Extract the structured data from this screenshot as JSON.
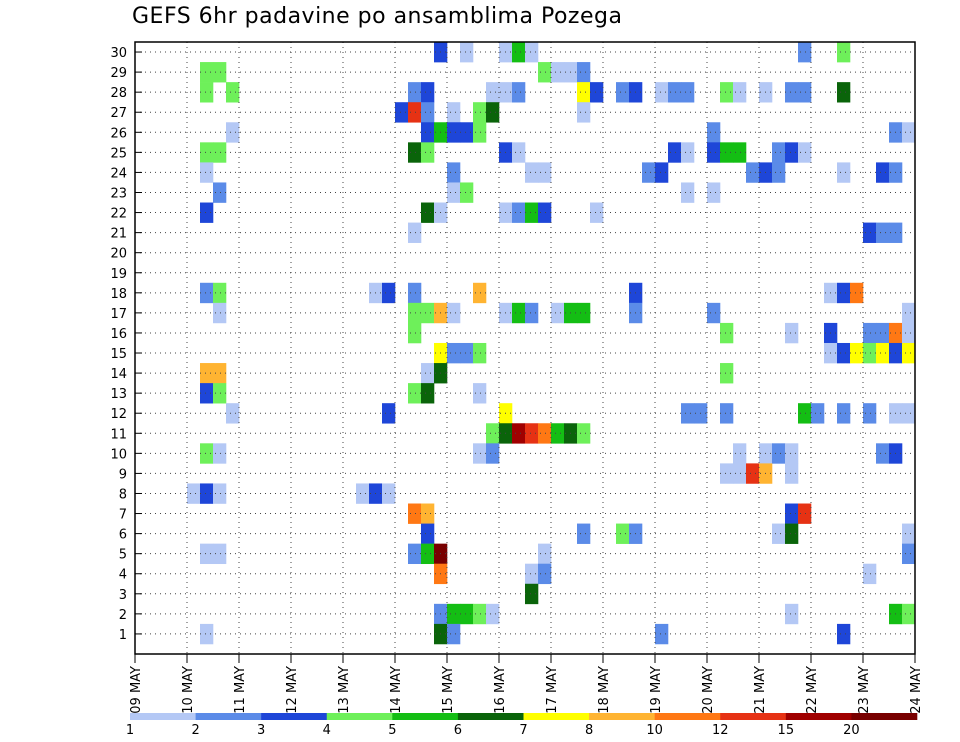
{
  "chart_data": {
    "type": "heatmap",
    "title": "GEFS 6hr padavine po ansamblima Pozega",
    "xlabel": "",
    "ylabel": "",
    "x_tick_labels": [
      "09 MAY",
      "10 MAY",
      "11 MAY",
      "12 MAY",
      "13 MAY",
      "14 MAY",
      "15 MAY",
      "16 MAY",
      "17 MAY",
      "18 MAY",
      "19 MAY",
      "20 MAY",
      "21 MAY",
      "22 MAY",
      "23 MAY",
      "24 MAY"
    ],
    "y_tick_labels": [
      "1",
      "2",
      "3",
      "4",
      "5",
      "6",
      "7",
      "8",
      "9",
      "10",
      "11",
      "12",
      "13",
      "14",
      "15",
      "16",
      "17",
      "18",
      "19",
      "20",
      "21",
      "22",
      "23",
      "24",
      "25",
      "26",
      "27",
      "28",
      "29",
      "30"
    ],
    "members_range": [
      0,
      30
    ],
    "steps_per_day": 4,
    "grid": true,
    "legend": {
      "placement": "bottom",
      "labels": [
        "1",
        "2",
        "3",
        "4",
        "5",
        "6",
        "7",
        "8",
        "10",
        "12",
        "15",
        "20"
      ],
      "colors": [
        "#b4c8f5",
        "#5b8be8",
        "#1e46d8",
        "#6ef05a",
        "#14be14",
        "#0a640a",
        "#ffff00",
        "#ffb432",
        "#ff7814",
        "#e63214",
        "#a00000",
        "#780000"
      ]
    },
    "cells": [
      {
        "m": 30,
        "t": 23,
        "c": 2
      },
      {
        "m": 30,
        "t": 25,
        "c": 0
      },
      {
        "m": 30,
        "t": 28,
        "c": 0
      },
      {
        "m": 30,
        "t": 29,
        "c": 4
      },
      {
        "m": 30,
        "t": 30,
        "c": 0
      },
      {
        "m": 30,
        "t": 51,
        "c": 1
      },
      {
        "m": 30,
        "t": 54,
        "c": 3
      },
      {
        "m": 29,
        "t": 5,
        "c": 3
      },
      {
        "m": 29,
        "t": 6,
        "c": 3
      },
      {
        "m": 29,
        "t": 31,
        "c": 3
      },
      {
        "m": 29,
        "t": 32,
        "c": 0
      },
      {
        "m": 29,
        "t": 33,
        "c": 0
      },
      {
        "m": 29,
        "t": 34,
        "c": 1
      },
      {
        "m": 28,
        "t": 5,
        "c": 3
      },
      {
        "m": 28,
        "t": 7,
        "c": 3
      },
      {
        "m": 28,
        "t": 21,
        "c": 1
      },
      {
        "m": 28,
        "t": 22,
        "c": 2
      },
      {
        "m": 28,
        "t": 27,
        "c": 0
      },
      {
        "m": 28,
        "t": 28,
        "c": 0
      },
      {
        "m": 28,
        "t": 29,
        "c": 1
      },
      {
        "m": 28,
        "t": 34,
        "c": 6
      },
      {
        "m": 28,
        "t": 35,
        "c": 2
      },
      {
        "m": 28,
        "t": 37,
        "c": 1
      },
      {
        "m": 28,
        "t": 38,
        "c": 2
      },
      {
        "m": 28,
        "t": 40,
        "c": 0
      },
      {
        "m": 28,
        "t": 41,
        "c": 1
      },
      {
        "m": 28,
        "t": 42,
        "c": 1
      },
      {
        "m": 28,
        "t": 45,
        "c": 3
      },
      {
        "m": 28,
        "t": 46,
        "c": 0
      },
      {
        "m": 28,
        "t": 48,
        "c": 0
      },
      {
        "m": 28,
        "t": 50,
        "c": 1
      },
      {
        "m": 28,
        "t": 51,
        "c": 1
      },
      {
        "m": 28,
        "t": 54,
        "c": 5
      },
      {
        "m": 27,
        "t": 20,
        "c": 2
      },
      {
        "m": 27,
        "t": 21,
        "c": 9
      },
      {
        "m": 27,
        "t": 22,
        "c": 1
      },
      {
        "m": 27,
        "t": 24,
        "c": 0
      },
      {
        "m": 27,
        "t": 26,
        "c": 3
      },
      {
        "m": 27,
        "t": 27,
        "c": 5
      },
      {
        "m": 27,
        "t": 34,
        "c": 0
      },
      {
        "m": 26,
        "t": 7,
        "c": 0
      },
      {
        "m": 26,
        "t": 22,
        "c": 2
      },
      {
        "m": 26,
        "t": 23,
        "c": 4
      },
      {
        "m": 26,
        "t": 24,
        "c": 2
      },
      {
        "m": 26,
        "t": 25,
        "c": 2
      },
      {
        "m": 26,
        "t": 26,
        "c": 3
      },
      {
        "m": 26,
        "t": 44,
        "c": 1
      },
      {
        "m": 26,
        "t": 58,
        "c": 1
      },
      {
        "m": 26,
        "t": 59,
        "c": 0
      },
      {
        "m": 25,
        "t": 5,
        "c": 3
      },
      {
        "m": 25,
        "t": 6,
        "c": 3
      },
      {
        "m": 25,
        "t": 21,
        "c": 5
      },
      {
        "m": 25,
        "t": 22,
        "c": 3
      },
      {
        "m": 25,
        "t": 28,
        "c": 2
      },
      {
        "m": 25,
        "t": 29,
        "c": 0
      },
      {
        "m": 25,
        "t": 41,
        "c": 2
      },
      {
        "m": 25,
        "t": 42,
        "c": 0
      },
      {
        "m": 25,
        "t": 44,
        "c": 2
      },
      {
        "m": 25,
        "t": 45,
        "c": 4
      },
      {
        "m": 25,
        "t": 46,
        "c": 4
      },
      {
        "m": 25,
        "t": 49,
        "c": 1
      },
      {
        "m": 25,
        "t": 50,
        "c": 2
      },
      {
        "m": 25,
        "t": 51,
        "c": 0
      },
      {
        "m": 24,
        "t": 5,
        "c": 0
      },
      {
        "m": 24,
        "t": 24,
        "c": 1
      },
      {
        "m": 24,
        "t": 30,
        "c": 0
      },
      {
        "m": 24,
        "t": 31,
        "c": 0
      },
      {
        "m": 24,
        "t": 39,
        "c": 1
      },
      {
        "m": 24,
        "t": 40,
        "c": 2
      },
      {
        "m": 24,
        "t": 47,
        "c": 1
      },
      {
        "m": 24,
        "t": 48,
        "c": 2
      },
      {
        "m": 24,
        "t": 49,
        "c": 1
      },
      {
        "m": 24,
        "t": 54,
        "c": 0
      },
      {
        "m": 24,
        "t": 57,
        "c": 2
      },
      {
        "m": 24,
        "t": 58,
        "c": 1
      },
      {
        "m": 23,
        "t": 6,
        "c": 1
      },
      {
        "m": 23,
        "t": 24,
        "c": 0
      },
      {
        "m": 23,
        "t": 25,
        "c": 3
      },
      {
        "m": 23,
        "t": 42,
        "c": 0
      },
      {
        "m": 23,
        "t": 44,
        "c": 0
      },
      {
        "m": 22,
        "t": 5,
        "c": 2
      },
      {
        "m": 22,
        "t": 22,
        "c": 5
      },
      {
        "m": 22,
        "t": 23,
        "c": 0
      },
      {
        "m": 22,
        "t": 28,
        "c": 0
      },
      {
        "m": 22,
        "t": 29,
        "c": 1
      },
      {
        "m": 22,
        "t": 30,
        "c": 4
      },
      {
        "m": 22,
        "t": 31,
        "c": 2
      },
      {
        "m": 22,
        "t": 35,
        "c": 0
      },
      {
        "m": 21,
        "t": 21,
        "c": 0
      },
      {
        "m": 21,
        "t": 56,
        "c": 2
      },
      {
        "m": 21,
        "t": 57,
        "c": 1
      },
      {
        "m": 21,
        "t": 58,
        "c": 1
      },
      {
        "m": 18,
        "t": 5,
        "c": 1
      },
      {
        "m": 18,
        "t": 6,
        "c": 3
      },
      {
        "m": 18,
        "t": 18,
        "c": 0
      },
      {
        "m": 18,
        "t": 19,
        "c": 2
      },
      {
        "m": 18,
        "t": 21,
        "c": 1
      },
      {
        "m": 18,
        "t": 26,
        "c": 7
      },
      {
        "m": 18,
        "t": 38,
        "c": 2
      },
      {
        "m": 18,
        "t": 53,
        "c": 0
      },
      {
        "m": 18,
        "t": 54,
        "c": 2
      },
      {
        "m": 18,
        "t": 55,
        "c": 8
      },
      {
        "m": 17,
        "t": 6,
        "c": 0
      },
      {
        "m": 17,
        "t": 21,
        "c": 3
      },
      {
        "m": 17,
        "t": 22,
        "c": 3
      },
      {
        "m": 17,
        "t": 23,
        "c": 7
      },
      {
        "m": 17,
        "t": 24,
        "c": 0
      },
      {
        "m": 17,
        "t": 28,
        "c": 0
      },
      {
        "m": 17,
        "t": 29,
        "c": 4
      },
      {
        "m": 17,
        "t": 30,
        "c": 1
      },
      {
        "m": 17,
        "t": 32,
        "c": 0
      },
      {
        "m": 17,
        "t": 33,
        "c": 4
      },
      {
        "m": 17,
        "t": 34,
        "c": 4
      },
      {
        "m": 17,
        "t": 38,
        "c": 1
      },
      {
        "m": 17,
        "t": 44,
        "c": 1
      },
      {
        "m": 17,
        "t": 59,
        "c": 0
      },
      {
        "m": 16,
        "t": 21,
        "c": 3
      },
      {
        "m": 16,
        "t": 45,
        "c": 3
      },
      {
        "m": 16,
        "t": 50,
        "c": 0
      },
      {
        "m": 16,
        "t": 53,
        "c": 2
      },
      {
        "m": 16,
        "t": 56,
        "c": 1
      },
      {
        "m": 16,
        "t": 57,
        "c": 1
      },
      {
        "m": 16,
        "t": 58,
        "c": 8
      },
      {
        "m": 16,
        "t": 59,
        "c": 0
      },
      {
        "m": 15,
        "t": 23,
        "c": 6
      },
      {
        "m": 15,
        "t": 24,
        "c": 1
      },
      {
        "m": 15,
        "t": 25,
        "c": 1
      },
      {
        "m": 15,
        "t": 26,
        "c": 3
      },
      {
        "m": 15,
        "t": 53,
        "c": 0
      },
      {
        "m": 15,
        "t": 54,
        "c": 2
      },
      {
        "m": 15,
        "t": 55,
        "c": 6
      },
      {
        "m": 15,
        "t": 56,
        "c": 3
      },
      {
        "m": 15,
        "t": 57,
        "c": 6
      },
      {
        "m": 15,
        "t": 58,
        "c": 2
      },
      {
        "m": 15,
        "t": 59,
        "c": 6
      },
      {
        "m": 14,
        "t": 5,
        "c": 7
      },
      {
        "m": 14,
        "t": 6,
        "c": 7
      },
      {
        "m": 14,
        "t": 22,
        "c": 0
      },
      {
        "m": 14,
        "t": 23,
        "c": 5
      },
      {
        "m": 14,
        "t": 45,
        "c": 3
      },
      {
        "m": 13,
        "t": 5,
        "c": 2
      },
      {
        "m": 13,
        "t": 6,
        "c": 3
      },
      {
        "m": 13,
        "t": 21,
        "c": 3
      },
      {
        "m": 13,
        "t": 22,
        "c": 5
      },
      {
        "m": 13,
        "t": 26,
        "c": 0
      },
      {
        "m": 12,
        "t": 7,
        "c": 0
      },
      {
        "m": 12,
        "t": 19,
        "c": 2
      },
      {
        "m": 12,
        "t": 28,
        "c": 6
      },
      {
        "m": 12,
        "t": 42,
        "c": 1
      },
      {
        "m": 12,
        "t": 43,
        "c": 1
      },
      {
        "m": 12,
        "t": 45,
        "c": 1
      },
      {
        "m": 12,
        "t": 51,
        "c": 4
      },
      {
        "m": 12,
        "t": 52,
        "c": 1
      },
      {
        "m": 12,
        "t": 54,
        "c": 1
      },
      {
        "m": 12,
        "t": 56,
        "c": 1
      },
      {
        "m": 12,
        "t": 58,
        "c": 0
      },
      {
        "m": 12,
        "t": 59,
        "c": 0
      },
      {
        "m": 11,
        "t": 27,
        "c": 3
      },
      {
        "m": 11,
        "t": 28,
        "c": 5
      },
      {
        "m": 11,
        "t": 29,
        "c": 10
      },
      {
        "m": 11,
        "t": 30,
        "c": 9
      },
      {
        "m": 11,
        "t": 31,
        "c": 8
      },
      {
        "m": 11,
        "t": 32,
        "c": 4
      },
      {
        "m": 11,
        "t": 33,
        "c": 5
      },
      {
        "m": 11,
        "t": 34,
        "c": 3
      },
      {
        "m": 10,
        "t": 5,
        "c": 3
      },
      {
        "m": 10,
        "t": 6,
        "c": 0
      },
      {
        "m": 10,
        "t": 26,
        "c": 0
      },
      {
        "m": 10,
        "t": 27,
        "c": 1
      },
      {
        "m": 10,
        "t": 46,
        "c": 0
      },
      {
        "m": 10,
        "t": 48,
        "c": 0
      },
      {
        "m": 10,
        "t": 49,
        "c": 1
      },
      {
        "m": 10,
        "t": 50,
        "c": 0
      },
      {
        "m": 10,
        "t": 57,
        "c": 1
      },
      {
        "m": 10,
        "t": 58,
        "c": 2
      },
      {
        "m": 9,
        "t": 45,
        "c": 0
      },
      {
        "m": 9,
        "t": 46,
        "c": 0
      },
      {
        "m": 9,
        "t": 47,
        "c": 9
      },
      {
        "m": 9,
        "t": 48,
        "c": 7
      },
      {
        "m": 9,
        "t": 50,
        "c": 0
      },
      {
        "m": 8,
        "t": 4,
        "c": 0
      },
      {
        "m": 8,
        "t": 5,
        "c": 2
      },
      {
        "m": 8,
        "t": 6,
        "c": 0
      },
      {
        "m": 8,
        "t": 17,
        "c": 0
      },
      {
        "m": 8,
        "t": 18,
        "c": 2
      },
      {
        "m": 8,
        "t": 19,
        "c": 0
      },
      {
        "m": 7,
        "t": 21,
        "c": 8
      },
      {
        "m": 7,
        "t": 22,
        "c": 7
      },
      {
        "m": 7,
        "t": 50,
        "c": 2
      },
      {
        "m": 7,
        "t": 51,
        "c": 9
      },
      {
        "m": 6,
        "t": 22,
        "c": 2
      },
      {
        "m": 6,
        "t": 34,
        "c": 1
      },
      {
        "m": 6,
        "t": 37,
        "c": 3
      },
      {
        "m": 6,
        "t": 38,
        "c": 1
      },
      {
        "m": 6,
        "t": 49,
        "c": 0
      },
      {
        "m": 6,
        "t": 50,
        "c": 5
      },
      {
        "m": 6,
        "t": 59,
        "c": 0
      },
      {
        "m": 5,
        "t": 5,
        "c": 0
      },
      {
        "m": 5,
        "t": 6,
        "c": 0
      },
      {
        "m": 5,
        "t": 21,
        "c": 1
      },
      {
        "m": 5,
        "t": 22,
        "c": 4
      },
      {
        "m": 5,
        "t": 23,
        "c": 11
      },
      {
        "m": 5,
        "t": 31,
        "c": 0
      },
      {
        "m": 5,
        "t": 59,
        "c": 1
      },
      {
        "m": 4,
        "t": 23,
        "c": 8
      },
      {
        "m": 4,
        "t": 30,
        "c": 0
      },
      {
        "m": 4,
        "t": 31,
        "c": 1
      },
      {
        "m": 4,
        "t": 56,
        "c": 0
      },
      {
        "m": 3,
        "t": 30,
        "c": 5
      },
      {
        "m": 2,
        "t": 23,
        "c": 1
      },
      {
        "m": 2,
        "t": 24,
        "c": 4
      },
      {
        "m": 2,
        "t": 25,
        "c": 4
      },
      {
        "m": 2,
        "t": 26,
        "c": 3
      },
      {
        "m": 2,
        "t": 27,
        "c": 0
      },
      {
        "m": 2,
        "t": 50,
        "c": 0
      },
      {
        "m": 2,
        "t": 58,
        "c": 4
      },
      {
        "m": 2,
        "t": 59,
        "c": 3
      },
      {
        "m": 1,
        "t": 5,
        "c": 0
      },
      {
        "m": 1,
        "t": 23,
        "c": 5
      },
      {
        "m": 1,
        "t": 24,
        "c": 1
      },
      {
        "m": 1,
        "t": 40,
        "c": 1
      },
      {
        "m": 1,
        "t": 54,
        "c": 2
      }
    ]
  }
}
